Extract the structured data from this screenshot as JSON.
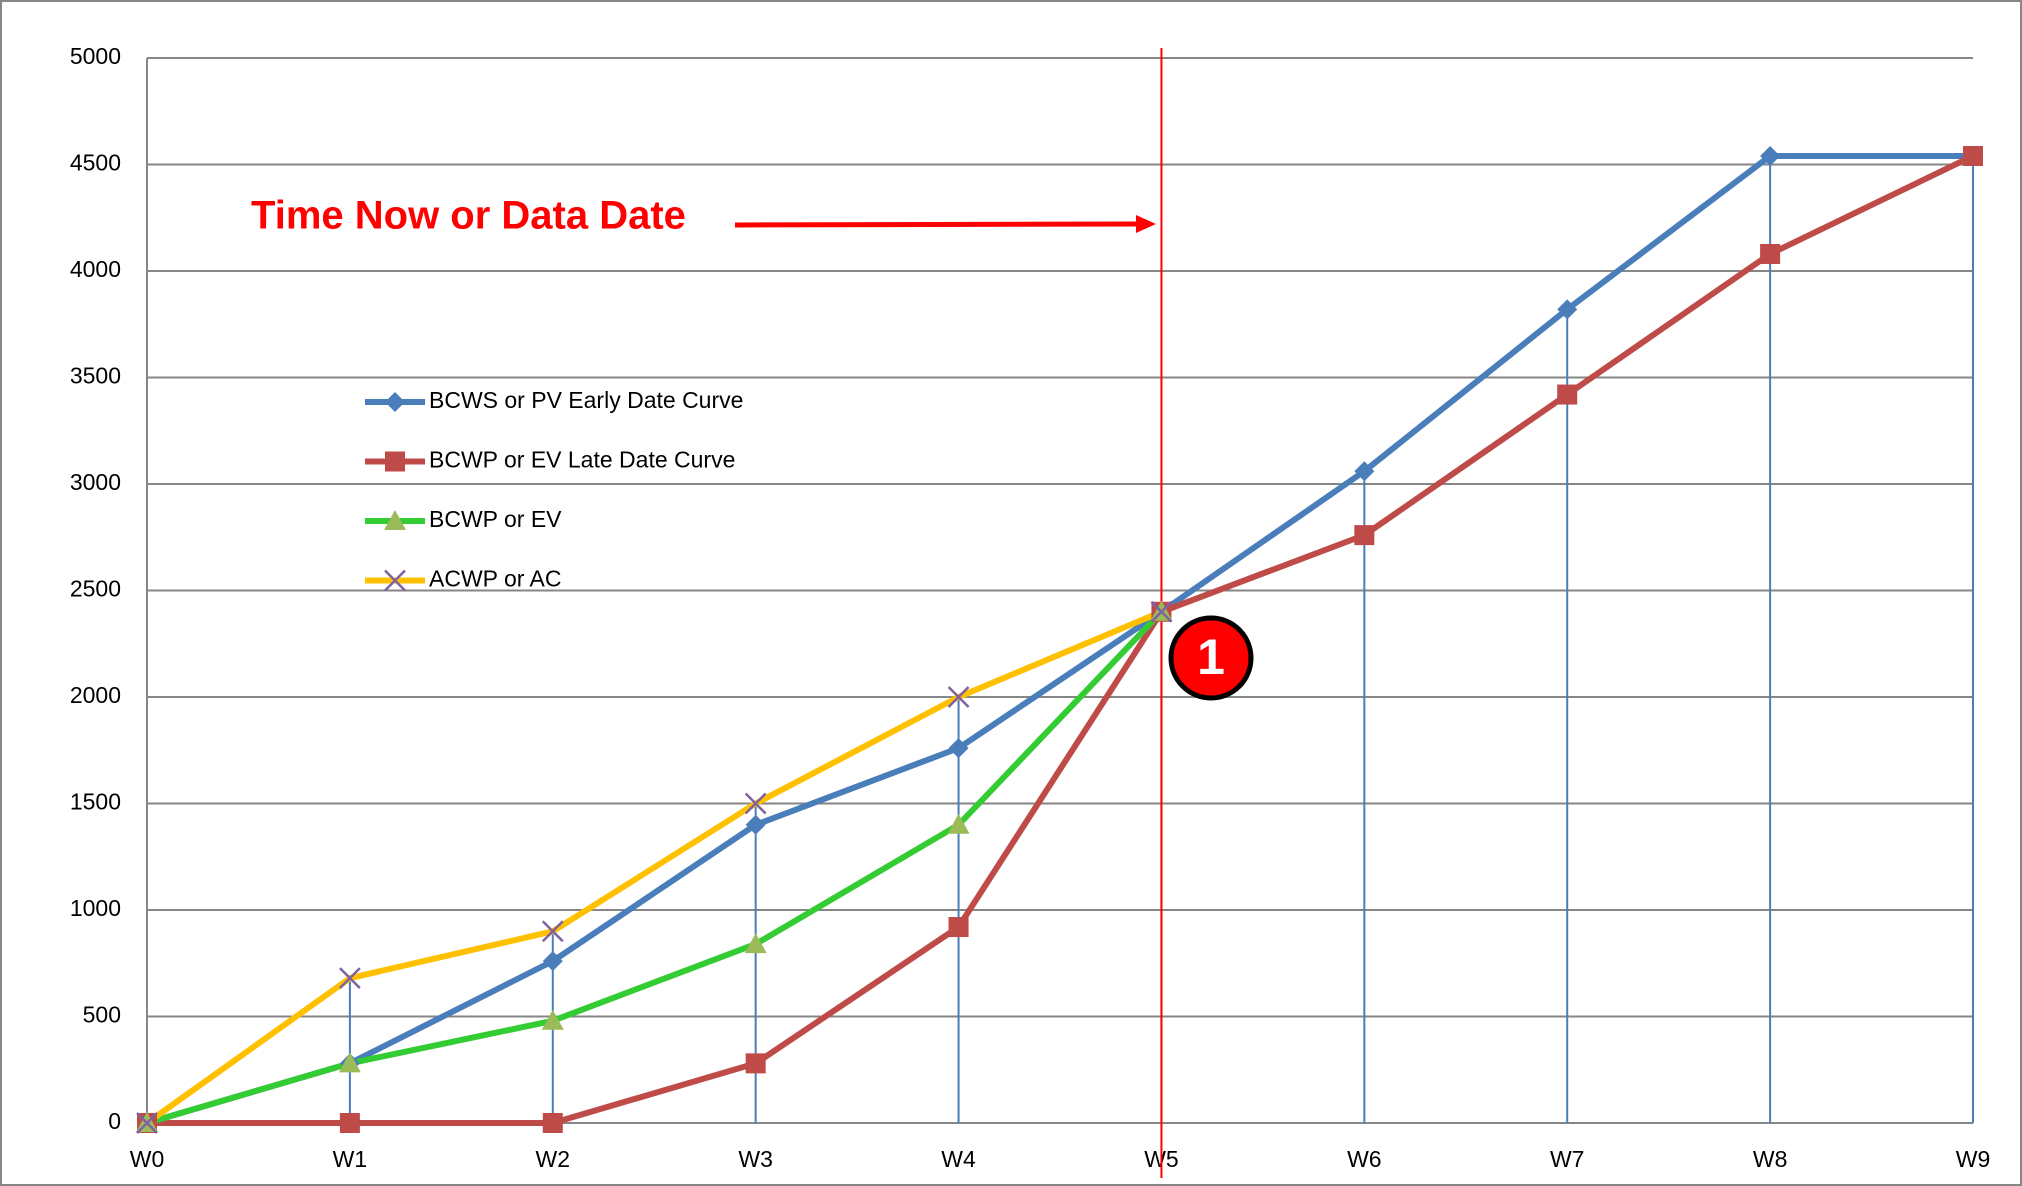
{
  "chart_data": {
    "type": "line",
    "categories": [
      "W0",
      "W1",
      "W2",
      "W3",
      "W4",
      "W5",
      "W6",
      "W7",
      "W8",
      "W9"
    ],
    "series": [
      {
        "name": "BCWS or PV Early Date Curve",
        "color": "#4a7ebb",
        "marker": "diamond",
        "marker_color": "#4a7ebb",
        "values": [
          0,
          280,
          760,
          1400,
          1760,
          2400,
          3060,
          3820,
          4540,
          4540
        ]
      },
      {
        "name": "BCWP or EV Late Date Curve",
        "color": "#be4b48",
        "marker": "square",
        "marker_color": "#be4b48",
        "values": [
          0,
          0,
          0,
          280,
          920,
          2400,
          2760,
          3420,
          4080,
          4540
        ]
      },
      {
        "name": "BCWP or EV",
        "color": "#33cc33",
        "marker": "triangle",
        "marker_color": "#9bbb59",
        "values": [
          0,
          280,
          480,
          840,
          1400,
          2400,
          null,
          null,
          null,
          null
        ]
      },
      {
        "name": "ACWP or AC",
        "color": "#ffc000",
        "marker": "x",
        "marker_color": "#7e62a1",
        "values": [
          0,
          680,
          900,
          1500,
          2000,
          2400,
          null,
          null,
          null,
          null
        ]
      }
    ],
    "ylim": [
      0,
      5000
    ],
    "yticks": [
      0,
      500,
      1000,
      1500,
      2000,
      2500,
      3000,
      3500,
      4000,
      4500,
      5000
    ],
    "grid": true,
    "drop_lines": true,
    "drop_line_color": "#4a7ebb",
    "annotation": "Time Now or Data Date",
    "data_date": "W5",
    "callout": "1"
  }
}
